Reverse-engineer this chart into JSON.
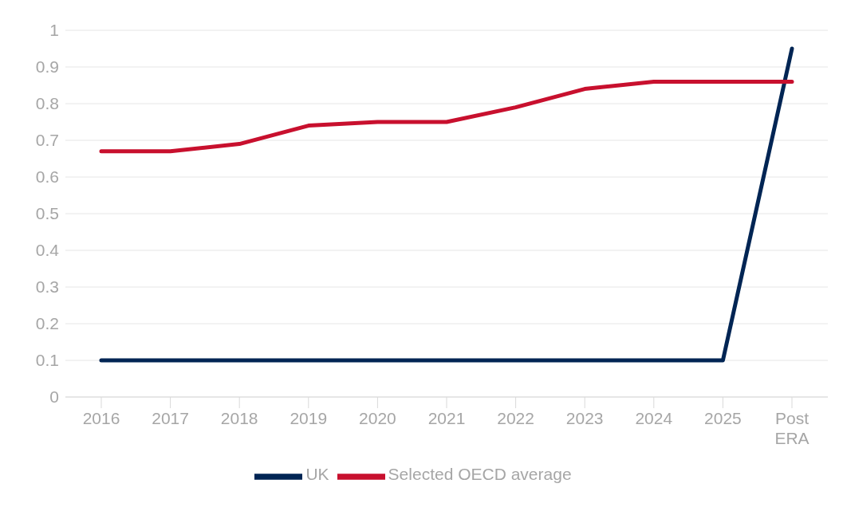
{
  "chart_data": {
    "type": "line",
    "categories": [
      "2016",
      "2017",
      "2018",
      "2019",
      "2020",
      "2021",
      "2022",
      "2023",
      "2024",
      "2025",
      "Post ERA"
    ],
    "series": [
      {
        "name": "UK",
        "color": "#002554",
        "values": [
          0.1,
          0.1,
          0.1,
          0.1,
          0.1,
          0.1,
          0.1,
          0.1,
          0.1,
          0.1,
          0.95
        ]
      },
      {
        "name": "Selected OECD average",
        "color": "#c8102e",
        "values": [
          0.67,
          0.67,
          0.69,
          0.74,
          0.75,
          0.75,
          0.79,
          0.84,
          0.86,
          0.86,
          0.86
        ]
      }
    ],
    "ylim": [
      0,
      1
    ],
    "yticks": [
      0,
      0.1,
      0.2,
      0.3,
      0.4,
      0.5,
      0.6,
      0.7,
      0.8,
      0.9,
      1
    ],
    "grid": "y",
    "legend": "bottom",
    "marker": "none",
    "line_style": "solid"
  }
}
